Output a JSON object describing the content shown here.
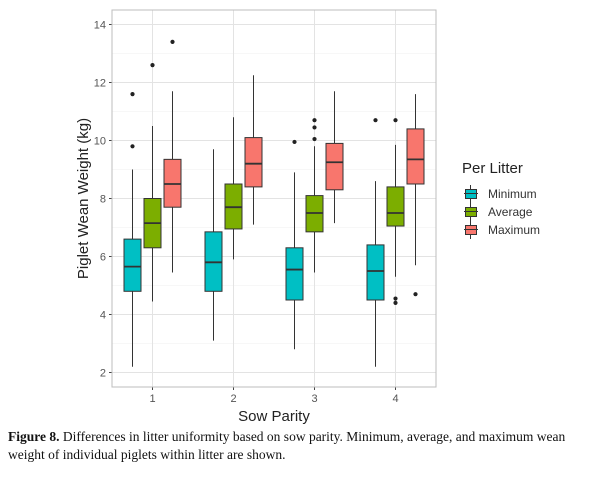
{
  "chart_data": {
    "type": "box",
    "xlabel": "Sow Parity",
    "ylabel": "Piglet Wean Weight (kg)",
    "categories": [
      "1",
      "2",
      "3",
      "4"
    ],
    "ylim": [
      1.5,
      14.5
    ],
    "yticks": [
      2,
      4,
      6,
      8,
      10,
      12,
      14
    ],
    "grid": true,
    "legend": {
      "title": "Per Litter",
      "placement": "right"
    },
    "series": [
      {
        "name": "Minimum",
        "color": "#00BFC4",
        "boxes": [
          {
            "min": 2.2,
            "q1": 4.8,
            "median": 5.65,
            "q3": 6.6,
            "max": 9.0,
            "outliers": [
              9.8,
              11.6
            ]
          },
          {
            "min": 3.1,
            "q1": 4.8,
            "median": 5.8,
            "q3": 6.85,
            "max": 9.7,
            "outliers": []
          },
          {
            "min": 2.8,
            "q1": 4.5,
            "median": 5.55,
            "q3": 6.3,
            "max": 8.9,
            "outliers": [
              9.95
            ]
          },
          {
            "min": 2.2,
            "q1": 4.5,
            "median": 5.5,
            "q3": 6.4,
            "max": 8.6,
            "outliers": [
              10.7
            ]
          }
        ]
      },
      {
        "name": "Average",
        "color": "#7CAE00",
        "boxes": [
          {
            "min": 4.45,
            "q1": 6.3,
            "median": 7.15,
            "q3": 8.0,
            "max": 10.5,
            "outliers": [
              12.6
            ]
          },
          {
            "min": 5.9,
            "q1": 6.95,
            "median": 7.7,
            "q3": 8.5,
            "max": 10.8,
            "outliers": []
          },
          {
            "min": 5.45,
            "q1": 6.85,
            "median": 7.5,
            "q3": 8.1,
            "max": 9.8,
            "outliers": [
              10.05,
              10.45,
              10.7
            ]
          },
          {
            "min": 5.3,
            "q1": 7.05,
            "median": 7.5,
            "q3": 8.4,
            "max": 9.85,
            "outliers": [
              10.7,
              4.55,
              4.4
            ]
          }
        ]
      },
      {
        "name": "Maximum",
        "color": "#F8766D",
        "boxes": [
          {
            "min": 5.45,
            "q1": 7.7,
            "median": 8.5,
            "q3": 9.35,
            "max": 11.7,
            "outliers": [
              13.4
            ]
          },
          {
            "min": 7.1,
            "q1": 8.4,
            "median": 9.2,
            "q3": 10.1,
            "max": 12.25,
            "outliers": []
          },
          {
            "min": 7.15,
            "q1": 8.3,
            "median": 9.25,
            "q3": 9.9,
            "max": 11.7,
            "outliers": []
          },
          {
            "min": 5.7,
            "q1": 8.5,
            "median": 9.35,
            "q3": 10.4,
            "max": 11.6,
            "outliers": [
              4.7
            ]
          }
        ]
      }
    ]
  },
  "caption": {
    "label": "Figure 8.",
    "text": " Differences in litter uniformity based on sow parity. Minimum, average, and maximum wean weight of individual piglets within litter are shown."
  }
}
